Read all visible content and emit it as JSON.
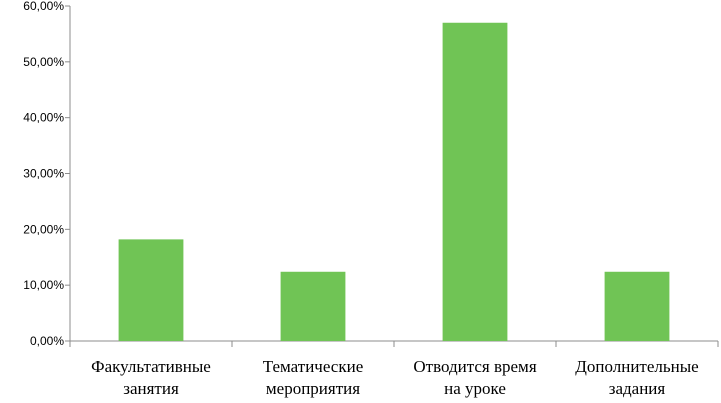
{
  "chart_data": {
    "type": "bar",
    "categories": [
      [
        "Факультативные",
        "занятия"
      ],
      [
        "Тематические",
        "мероприятия"
      ],
      [
        "Отводится время",
        "на уроке"
      ],
      [
        "Дополнительные",
        "задания"
      ]
    ],
    "values": [
      18.2,
      12.4,
      57.0,
      12.4
    ],
    "ylim": [
      0,
      60
    ],
    "yticks": [
      0,
      10,
      20,
      30,
      40,
      50,
      60
    ],
    "ytick_labels": [
      "0,00%",
      "10,00%",
      "20,00%",
      "30,00%",
      "40,00%",
      "50,00%",
      "60,00%"
    ],
    "bar_color": "#70c455",
    "axis_color": "#8c8c8c",
    "grid": false,
    "legend": "none"
  }
}
